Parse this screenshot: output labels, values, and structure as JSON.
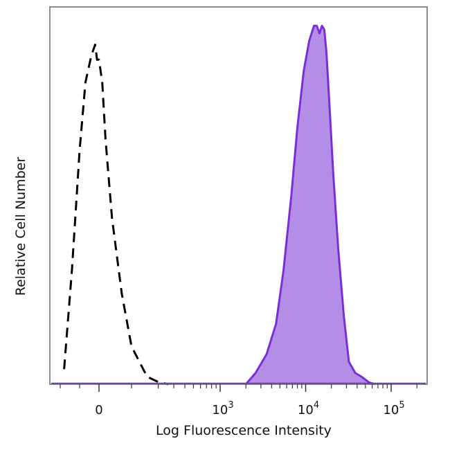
{
  "chart_data": {
    "type": "area",
    "title": "",
    "xlabel": "Log Fluorescence Intensity",
    "ylabel": "Relative Cell Number",
    "x_scale": "biexponential",
    "xlim": [
      -300,
      200000
    ],
    "ylim": [
      0,
      1.0
    ],
    "grid": false,
    "legend": "none",
    "x_ticks": [
      {
        "value": 0,
        "base": "0",
        "exp": ""
      },
      {
        "value": 1000,
        "base": "10",
        "exp": "3"
      },
      {
        "value": 10000,
        "base": "10",
        "exp": "4"
      },
      {
        "value": 100000,
        "base": "10",
        "exp": "5"
      }
    ],
    "colors": {
      "stained_fill": "#b48de6",
      "stained_line": "#7a2fd6",
      "control_line": "#000000",
      "axis": "#666666"
    },
    "series": [
      {
        "style": "dashed",
        "x": [
          -180,
          -140,
          -100,
          -70,
          -40,
          -20,
          -10,
          0,
          10,
          20,
          40,
          70,
          100,
          150,
          200,
          260
        ],
        "y": [
          0.04,
          0.3,
          0.62,
          0.8,
          0.87,
          0.9,
          0.86,
          0.86,
          0.8,
          0.65,
          0.44,
          0.24,
          0.1,
          0.02,
          0.006,
          0.0
        ]
      },
      {
        "style": "filled",
        "x": [
          2000,
          2600,
          3500,
          4500,
          5500,
          6800,
          8000,
          9500,
          11000,
          12500,
          13500,
          14500,
          15500,
          16500,
          17500,
          19000,
          21000,
          24000,
          28000,
          32000,
          38000,
          45000,
          55000,
          65000
        ],
        "y": [
          0.0,
          0.03,
          0.08,
          0.16,
          0.3,
          0.5,
          0.68,
          0.83,
          0.91,
          0.95,
          0.95,
          0.93,
          0.95,
          0.94,
          0.88,
          0.74,
          0.56,
          0.36,
          0.18,
          0.06,
          0.03,
          0.02,
          0.005,
          0.0
        ]
      }
    ]
  }
}
